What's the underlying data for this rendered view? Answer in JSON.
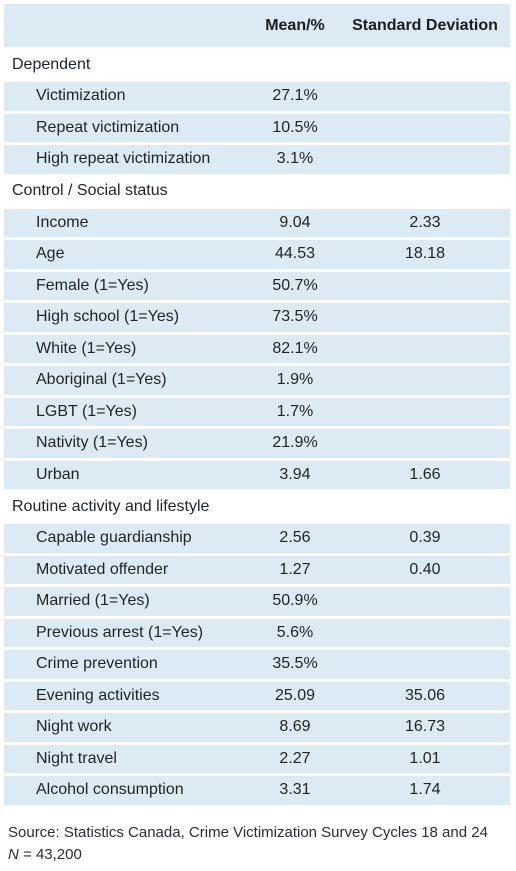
{
  "table": {
    "headers": [
      "",
      "Mean/%",
      "Standard Deviation"
    ],
    "sections": [
      {
        "title": "Dependent",
        "rows": [
          {
            "label": "Victimization",
            "mean": "27.1%",
            "sd": ""
          },
          {
            "label": "Repeat victimization",
            "mean": "10.5%",
            "sd": ""
          },
          {
            "label": "High repeat victimization",
            "mean": "3.1%",
            "sd": ""
          }
        ]
      },
      {
        "title": "Control / Social status",
        "rows": [
          {
            "label": "Income",
            "mean": "9.04",
            "sd": "2.33"
          },
          {
            "label": "Age",
            "mean": "44.53",
            "sd": "18.18"
          },
          {
            "label": "Female (1=Yes)",
            "mean": "50.7%",
            "sd": ""
          },
          {
            "label": "High school (1=Yes)",
            "mean": "73.5%",
            "sd": ""
          },
          {
            "label": "White (1=Yes)",
            "mean": "82.1%",
            "sd": ""
          },
          {
            "label": "Aboriginal (1=Yes)",
            "mean": "1.9%",
            "sd": ""
          },
          {
            "label": "LGBT (1=Yes)",
            "mean": "1.7%",
            "sd": ""
          },
          {
            "label": "Nativity (1=Yes)",
            "mean": "21.9%",
            "sd": ""
          },
          {
            "label": "Urban",
            "mean": "3.94",
            "sd": "1.66"
          }
        ]
      },
      {
        "title": "Routine activity and lifestyle",
        "rows": [
          {
            "label": "Capable guardianship",
            "mean": "2.56",
            "sd": "0.39"
          },
          {
            "label": "Motivated offender",
            "mean": "1.27",
            "sd": "0.40"
          },
          {
            "label": "Married (1=Yes)",
            "mean": "50.9%",
            "sd": ""
          },
          {
            "label": "Previous arrest (1=Yes)",
            "mean": "5.6%",
            "sd": ""
          },
          {
            "label": "Crime prevention",
            "mean": "35.5%",
            "sd": ""
          },
          {
            "label": "Evening activities",
            "mean": "25.09",
            "sd": "35.06"
          },
          {
            "label": "Night work",
            "mean": "8.69",
            "sd": "16.73"
          },
          {
            "label": "Night travel",
            "mean": "2.27",
            "sd": "1.01"
          },
          {
            "label": "Alcohol consumption",
            "mean": "3.31",
            "sd": "1.74"
          }
        ]
      }
    ]
  },
  "source": {
    "line1": "Source: Statistics Canada, Crime Victimization Survey Cycles 18 and 24",
    "n_label": "N",
    "n_value": " = 43,200"
  }
}
